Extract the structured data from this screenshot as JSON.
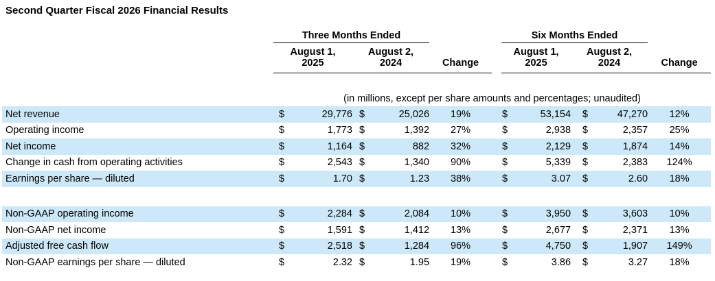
{
  "title": "Second Quarter Fiscal 2026 Financial Results",
  "table": {
    "note": "(in millions, except per share amounts and percentages; unaudited)",
    "currency": "$",
    "highlight_color": "#CDE8F9",
    "groups": {
      "three_months": "Three Months Ended",
      "six_months": "Six Months Ended"
    },
    "periods": {
      "aug1_2025_line1": "August 1,",
      "aug1_2025_line2": "2025",
      "aug2_2024_line1": "August 2,",
      "aug2_2024_line2": "2024"
    },
    "change_label": "Change",
    "rows": [
      {
        "label": "Net revenue",
        "tme_aug1_2025": "29,776",
        "tme_aug2_2024": "25,026",
        "tme_change": "19%",
        "sme_aug1_2025": "53,154",
        "sme_aug2_2024": "47,270",
        "sme_change": "12%",
        "highlight": true
      },
      {
        "label": "Operating income",
        "tme_aug1_2025": "1,773",
        "tme_aug2_2024": "1,392",
        "tme_change": "27%",
        "sme_aug1_2025": "2,938",
        "sme_aug2_2024": "2,357",
        "sme_change": "25%",
        "highlight": false
      },
      {
        "label": "Net income",
        "tme_aug1_2025": "1,164",
        "tme_aug2_2024": "882",
        "tme_change": "32%",
        "sme_aug1_2025": "2,129",
        "sme_aug2_2024": "1,874",
        "sme_change": "14%",
        "highlight": true
      },
      {
        "label": "Change in cash from operating activities",
        "tme_aug1_2025": "2,543",
        "tme_aug2_2024": "1,340",
        "tme_change": "90%",
        "sme_aug1_2025": "5,339",
        "sme_aug2_2024": "2,383",
        "sme_change": "124%",
        "highlight": false
      },
      {
        "label": "Earnings per share — diluted",
        "tme_aug1_2025": "1.70",
        "tme_aug2_2024": "1.23",
        "tme_change": "38%",
        "sme_aug1_2025": "3.07",
        "sme_aug2_2024": "2.60",
        "sme_change": "18%",
        "highlight": true
      },
      {
        "type": "spacer"
      },
      {
        "label": "Non-GAAP operating income",
        "tme_aug1_2025": "2,284",
        "tme_aug2_2024": "2,084",
        "tme_change": "10%",
        "sme_aug1_2025": "3,950",
        "sme_aug2_2024": "3,603",
        "sme_change": "10%",
        "highlight": true
      },
      {
        "label": "Non-GAAP net income",
        "tme_aug1_2025": "1,591",
        "tme_aug2_2024": "1,412",
        "tme_change": "13%",
        "sme_aug1_2025": "2,677",
        "sme_aug2_2024": "2,371",
        "sme_change": "13%",
        "highlight": false
      },
      {
        "label": "Adjusted free cash flow",
        "tme_aug1_2025": "2,518",
        "tme_aug2_2024": "1,284",
        "tme_change": "96%",
        "sme_aug1_2025": "4,750",
        "sme_aug2_2024": "1,907",
        "sme_change": "149%",
        "highlight": true
      },
      {
        "label": "Non-GAAP earnings per share — diluted",
        "tme_aug1_2025": "2.32",
        "tme_aug2_2024": "1.95",
        "tme_change": "19%",
        "sme_aug1_2025": "3.86",
        "sme_aug2_2024": "3.27",
        "sme_change": "18%",
        "highlight": false
      }
    ]
  }
}
